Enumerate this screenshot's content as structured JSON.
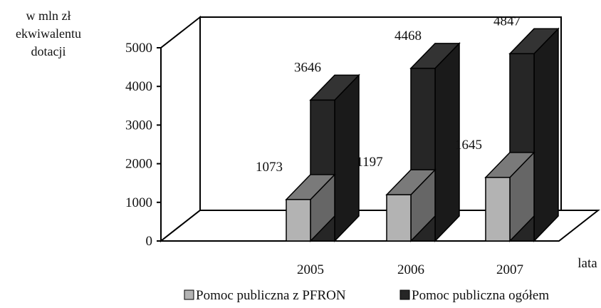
{
  "chart_data": {
    "type": "bar",
    "style": "3d-clustered-column",
    "ylabel": [
      "w mln zł",
      "ekwiwalentu",
      "dotacji"
    ],
    "xlabel": "lata",
    "categories": [
      "2005",
      "2006",
      "2007"
    ],
    "ylim": [
      0,
      5000
    ],
    "yticks": [
      "0",
      "1000",
      "2000",
      "3000",
      "4000",
      "5000"
    ],
    "grid": false,
    "legend_position": "bottom",
    "series": [
      {
        "name": "Pomoc publiczna z PFRON",
        "values": [
          1073,
          1197,
          1645
        ],
        "labels": [
          "1073",
          "1197",
          "1645"
        ],
        "color": "#b3b3b3"
      },
      {
        "name": "Pomoc publiczna ogółem",
        "values": [
          3646,
          4468,
          4847
        ],
        "labels": [
          "3646",
          "4468",
          "4847"
        ],
        "color": "#262626"
      }
    ]
  }
}
